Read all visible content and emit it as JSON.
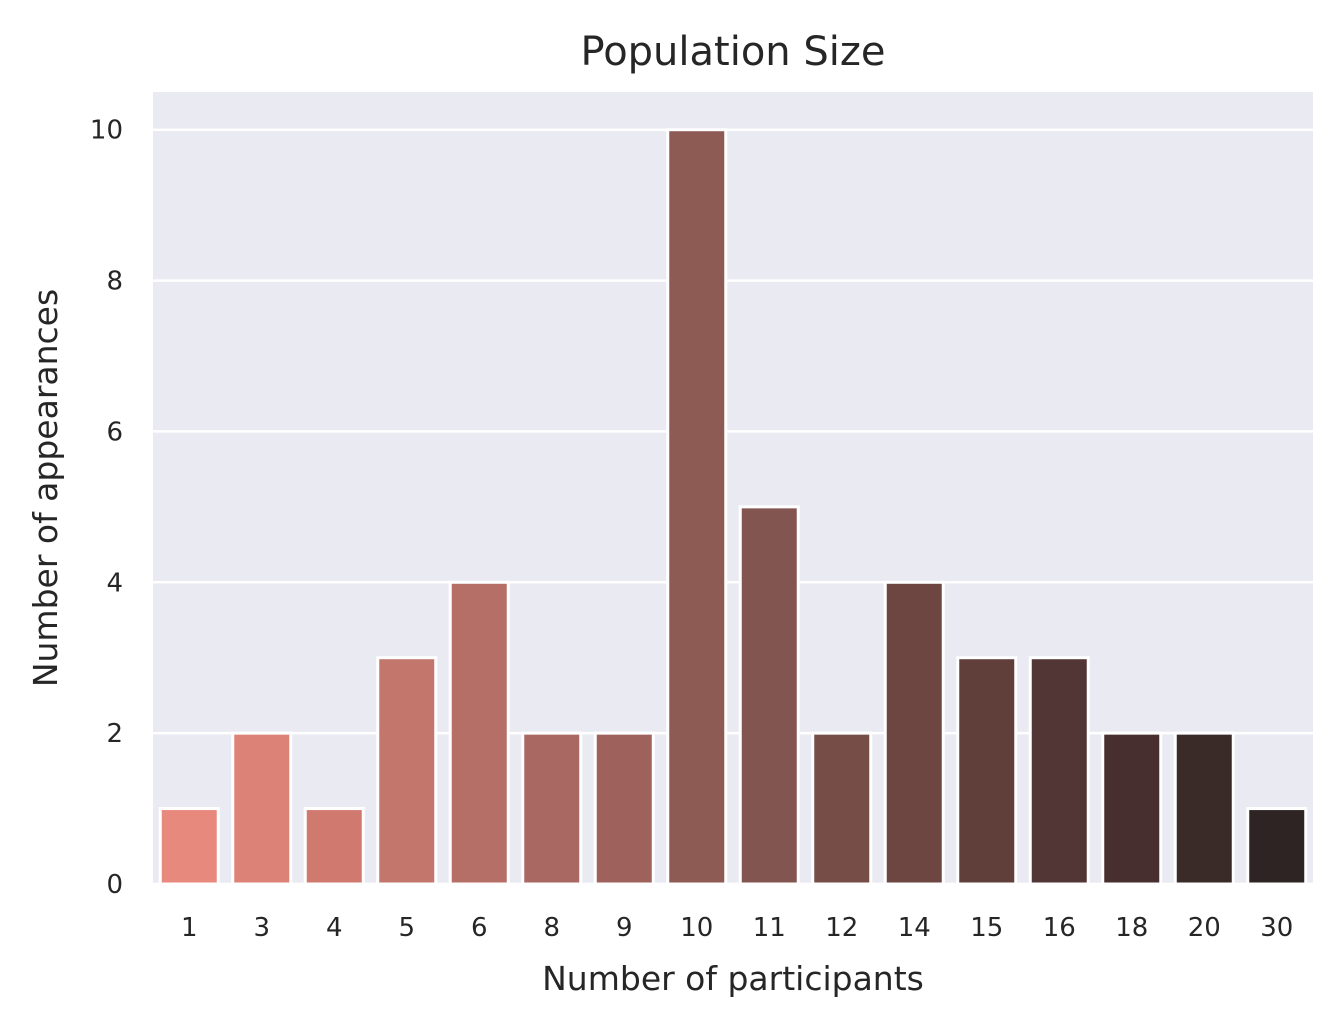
{
  "chart_data": {
    "type": "bar",
    "title": "Population Size",
    "xlabel": "Number of participants",
    "ylabel": "Number of appearances",
    "categories": [
      "1",
      "3",
      "4",
      "5",
      "6",
      "8",
      "9",
      "10",
      "11",
      "12",
      "14",
      "15",
      "16",
      "18",
      "20",
      "30"
    ],
    "values": [
      1,
      2,
      1,
      3,
      4,
      2,
      2,
      10,
      5,
      2,
      4,
      3,
      3,
      2,
      2,
      1
    ],
    "ylim": [
      0,
      10.5
    ],
    "yticks": [
      0,
      2,
      4,
      6,
      8,
      10
    ],
    "grid": true,
    "background_color": "#eaeaf2",
    "bar_colors": [
      "#e8897e",
      "#dd8276",
      "#d07a6f",
      "#c3776c",
      "#b56f66",
      "#a96862",
      "#9e615b",
      "#8e5a54",
      "#835550",
      "#774d48",
      "#6e4641",
      "#603f3b",
      "#523635",
      "#462f2e",
      "#3a2a28",
      "#2e2423"
    ]
  }
}
